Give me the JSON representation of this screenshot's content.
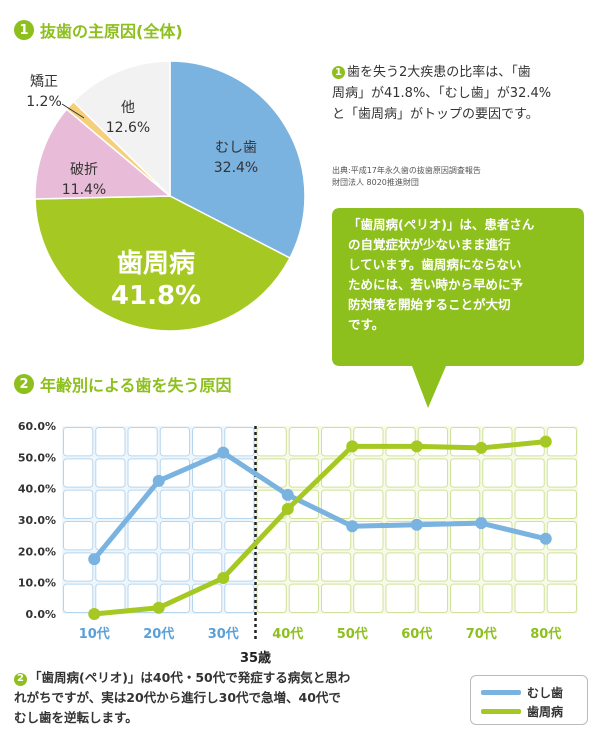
{
  "section1": {
    "number": "1",
    "title": "抜歯の主原因(全体)"
  },
  "summary": {
    "number": "1",
    "line1": "歯を失う2大疾患の比率は、「歯",
    "line2": "周病」が41.8%、「むし歯」が32.4%",
    "line3": "と「歯周病」がトップの要因です。"
  },
  "source": {
    "line1": "出典:平成17年永久歯の抜歯原因調査報告",
    "line2": "財団法人 8020推進財団"
  },
  "bubble": {
    "line1": "「歯周病(ペリオ)」は、患者さん",
    "line2": "の自覚症状が少ないまま進行",
    "line3": "しています。歯周病にならない",
    "line4": "ためには、若い時から早めに予",
    "line5": "防対策を開始することが大切",
    "line6": "です。"
  },
  "section2": {
    "number": "2",
    "title": "年齢別による歯を失う原因"
  },
  "marker_label": "35歳",
  "note": {
    "number": "2",
    "line1": "「歯周病(ペリオ)」は40代・50代で発症する病気と思わ",
    "line2": "れがちですが、実は20代から進行し30代で急増、40代で",
    "line3": "むし歯を逆転します。"
  },
  "colors": {
    "accent_green": "#8dbf1d",
    "caries_blue": "#7ab2e0",
    "periodontal_green": "#a5c823",
    "fracture_pink": "#e8bcd8",
    "other_gray": "#f2f2f2",
    "orthodontic_yellow": "#f5cf7a"
  },
  "chart_data": [
    {
      "type": "pie",
      "slices": [
        {
          "label": "むし歯",
          "value": 32.4,
          "display": "32.4%",
          "color": "#7ab2e0"
        },
        {
          "label": "歯周病",
          "value": 41.8,
          "display": "41.8%",
          "color": "#a5c823"
        },
        {
          "label": "破折",
          "value": 11.4,
          "display": "11.4%",
          "color": "#e8bcd8"
        },
        {
          "label": "矯正",
          "value": 1.2,
          "display": "1.2%",
          "color": "#f5cf7a"
        },
        {
          "label": "他",
          "value": 12.6,
          "display": "12.6%",
          "color": "#f2f2f2"
        }
      ]
    },
    {
      "type": "line",
      "categories": [
        "10代",
        "20代",
        "30代",
        "40代",
        "50代",
        "60代",
        "70代",
        "80代"
      ],
      "ylim": [
        0,
        60
      ],
      "yticks": [
        "0.0%",
        "10.0%",
        "20.0%",
        "30.0%",
        "40.0%",
        "50.0%",
        "60.0%"
      ],
      "grid": true,
      "legend": "bottom-right",
      "series": [
        {
          "name": "むし歯",
          "color": "#7ab2e0",
          "values": [
            17.5,
            42.5,
            51.5,
            38,
            28,
            28.5,
            29,
            24
          ]
        },
        {
          "name": "歯周病",
          "color": "#a5c823",
          "values": [
            0,
            2,
            11.5,
            33.5,
            53.5,
            53.5,
            53,
            55
          ]
        }
      ]
    }
  ]
}
